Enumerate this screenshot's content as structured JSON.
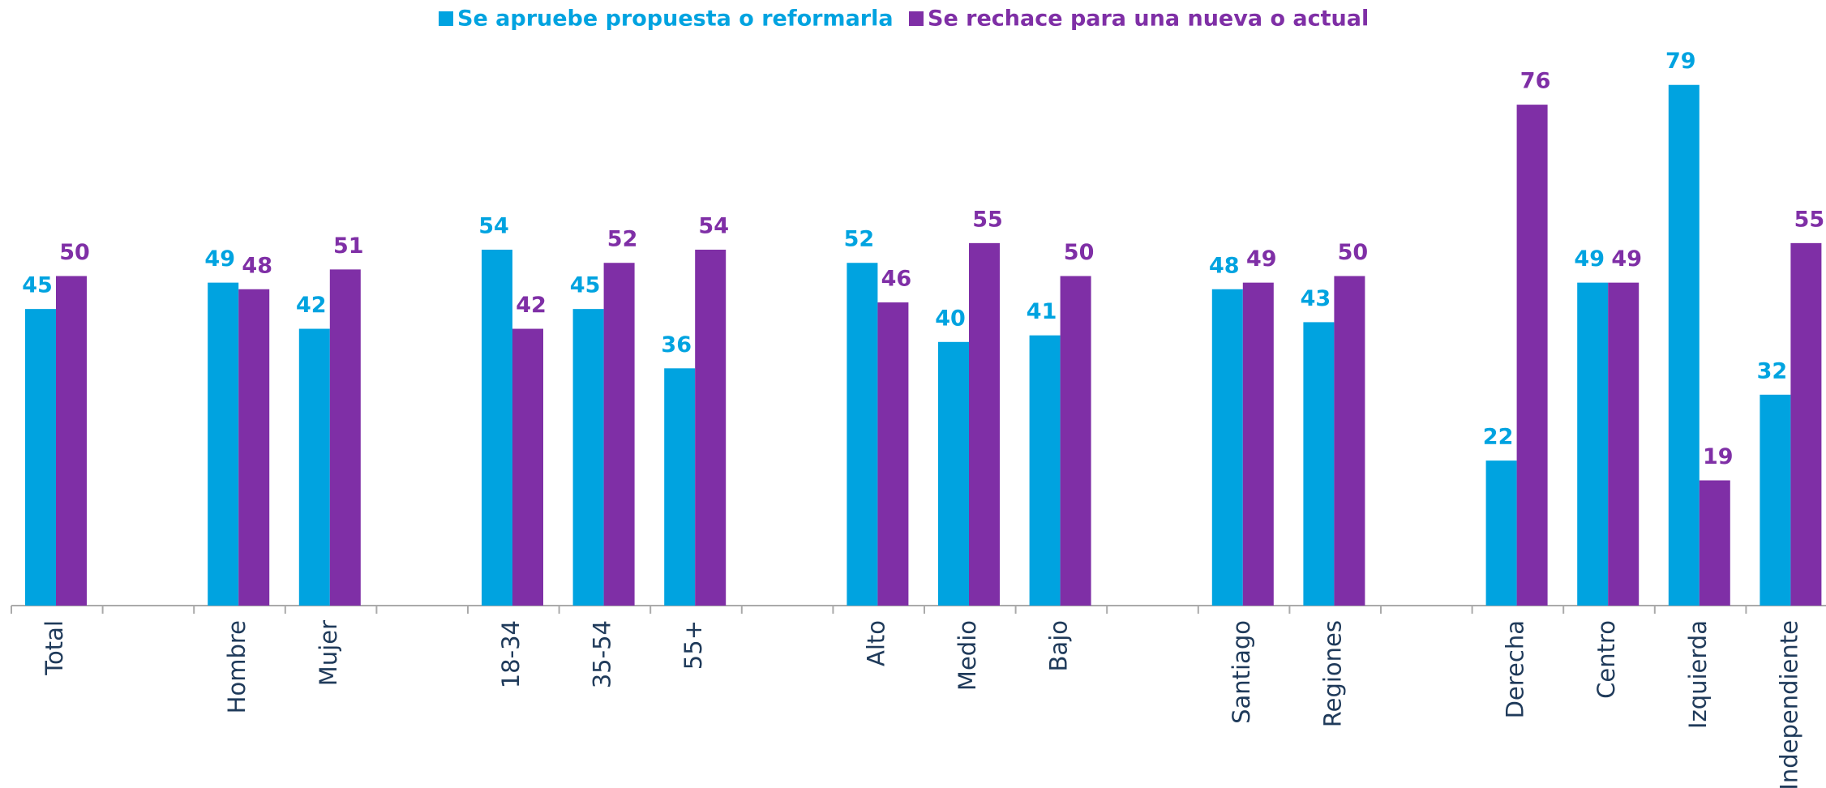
{
  "chart_data": {
    "type": "bar",
    "categories": [
      "Total",
      null,
      "Hombre",
      "Mujer",
      null,
      "18-34",
      "35-54",
      "55+",
      null,
      "Alto",
      "Medio",
      "Bajo",
      null,
      "Santiago",
      "Regiones",
      null,
      "Derecha",
      "Centro",
      "Izquierda",
      "Independiente"
    ],
    "series": [
      {
        "name": "Se apruebe propuesta o reformarla",
        "color": "#00a3e0",
        "values": [
          45,
          null,
          49,
          42,
          null,
          54,
          45,
          36,
          null,
          52,
          40,
          41,
          null,
          48,
          43,
          null,
          22,
          49,
          79,
          32
        ]
      },
      {
        "name": "Se rechace para una nueva o actual",
        "color": "#7f2fa6",
        "values": [
          50,
          null,
          48,
          51,
          null,
          42,
          52,
          54,
          null,
          46,
          55,
          50,
          null,
          49,
          50,
          null,
          76,
          49,
          19,
          55
        ]
      }
    ],
    "legend": "top"
  }
}
